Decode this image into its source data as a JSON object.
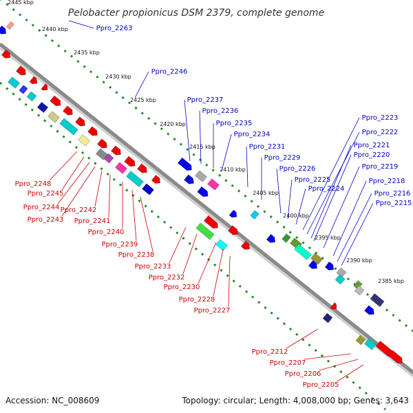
{
  "title": "Pelobacter propionicus DSM 2379, complete genome",
  "footer": {
    "accession": "Accession: NC_008609",
    "summary": "Topology: circular; Length: 4,008,000 bp; Genes: 3,643"
  },
  "colors": {
    "plus_strand_labels": "#0000cc",
    "minus_strand_labels": "#cc0000",
    "backbone": "#8a8a8a",
    "ruler": "#228b22",
    "plus_arrows": "#0000ee",
    "minus_arrows": "#ee0000"
  },
  "ruler_ticks": [
    "2445 kbp",
    "2440 kbp",
    "2435 kbp",
    "2430 kbp",
    "2425 kbp",
    "2420 kbp",
    "2415 kbp",
    "2410 kbp",
    "2405 kbp",
    "2400 kbp",
    "2395 kbp",
    "2390 kbp",
    "2385 kbp"
  ],
  "plus_genes": [
    "Ppro_2263",
    "Ppro_2246",
    "Ppro_2237",
    "Ppro_2236",
    "Ppro_2235",
    "Ppro_2234",
    "Ppro_2231",
    "Ppro_2229",
    "Ppro_2226",
    "Ppro_2225",
    "Ppro_2224",
    "Ppro_2223",
    "Ppro_2222",
    "Ppro_2221",
    "Ppro_2220",
    "Ppro_2219",
    "Ppro_2218",
    "Ppro_2216",
    "Ppro_2215"
  ],
  "minus_genes": [
    "Ppro_2248",
    "Ppro_2245",
    "Ppro_2244",
    "Ppro_2243",
    "Ppro_2242",
    "Ppro_2241",
    "Ppro_2240",
    "Ppro_2239",
    "Ppro_2238",
    "Ppro_2233",
    "Ppro_2232",
    "Ppro_2230",
    "Ppro_2228",
    "Ppro_2227",
    "Ppro_2212",
    "Ppro_2207",
    "Ppro_2206",
    "Ppro_2205"
  ]
}
